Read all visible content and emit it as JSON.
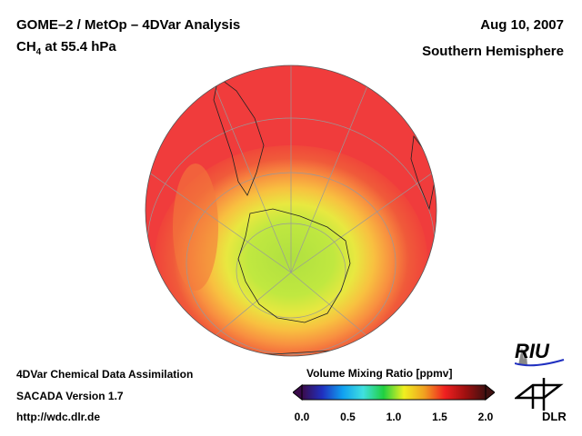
{
  "header": {
    "title": "GOME–2 / MetOp – 4DVar Analysis",
    "species_main": "CH",
    "species_sub": "4",
    "species_rest": " at 55.4 hPa",
    "date": "Aug 10, 2007",
    "region": "Southern Hemisphere"
  },
  "footer": {
    "line1": "4DVar Chemical Data Assimilation",
    "line2": "SACADA Version 1.7",
    "line3": "http://wdc.dlr.de"
  },
  "colorbar": {
    "title": "Volume Mixing Ratio [ppmv]",
    "ticks": [
      "0.0",
      "0.5",
      "1.0",
      "1.5",
      "2.0"
    ],
    "range": [
      0,
      2.0
    ],
    "colors": [
      "#3a0a4a",
      "#2030c0",
      "#10a0f0",
      "#40e0e0",
      "#20d040",
      "#f0f020",
      "#f0a020",
      "#f02020",
      "#a01010",
      "#401010"
    ]
  },
  "logos": {
    "riu": "RIU",
    "dlr": "DLR"
  }
}
